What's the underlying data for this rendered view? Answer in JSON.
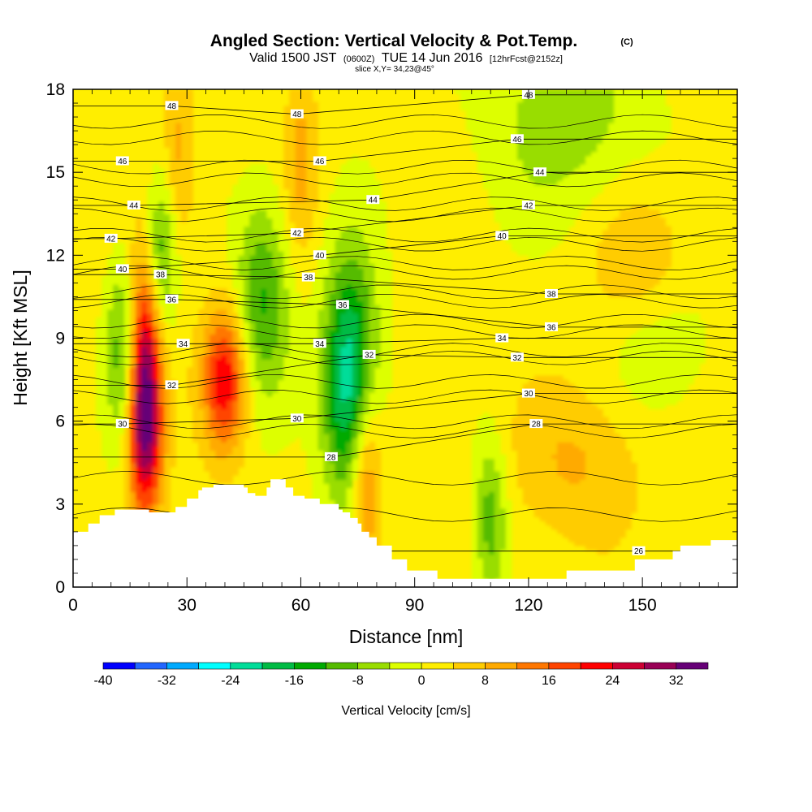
{
  "chart_data": {
    "type": "heatmap",
    "title": "Angled Section: Vertical Velocity & Pot.Temp.",
    "title_mark": "(C)",
    "subtitle": {
      "prefix": "Valid 1500 JST",
      "utc": "(0600Z)",
      "date": "TUE 14 Jun 2016",
      "forecast": "[12hrFcst@2152z]"
    },
    "slice_text": "slice X,Y= 34,23@45°",
    "xlabel": "Distance [nm]",
    "ylabel": "Height [Kft MSL]",
    "xlim": [
      0,
      175
    ],
    "ylim": [
      0,
      18
    ],
    "x_ticks": [
      "0",
      "30",
      "60",
      "90",
      "120",
      "150"
    ],
    "y_ticks": [
      "0",
      "3",
      "6",
      "9",
      "12",
      "15",
      "18"
    ],
    "colorbar": {
      "label": "Vertical Velocity [cm/s]",
      "tick_labels": [
        "-40",
        "-32",
        "-24",
        "-16",
        "-8",
        "0",
        "8",
        "16",
        "24",
        "32"
      ],
      "bins": [
        {
          "from": -40,
          "to": -36,
          "color": "#0000ff"
        },
        {
          "from": -36,
          "to": -32,
          "color": "#2266ff"
        },
        {
          "from": -32,
          "to": -28,
          "color": "#00aaff"
        },
        {
          "from": -28,
          "to": -24,
          "color": "#00ffff"
        },
        {
          "from": -24,
          "to": -20,
          "color": "#00dd99"
        },
        {
          "from": -20,
          "to": -16,
          "color": "#00bb44"
        },
        {
          "from": -16,
          "to": -12,
          "color": "#00aa00"
        },
        {
          "from": -12,
          "to": -8,
          "color": "#55bb00"
        },
        {
          "from": -8,
          "to": -4,
          "color": "#99dd00"
        },
        {
          "from": -4,
          "to": 0,
          "color": "#ddff00"
        },
        {
          "from": 0,
          "to": 4,
          "color": "#ffee00"
        },
        {
          "from": 4,
          "to": 8,
          "color": "#ffcc00"
        },
        {
          "from": 8,
          "to": 12,
          "color": "#ffaa00"
        },
        {
          "from": 12,
          "to": 16,
          "color": "#ff7700"
        },
        {
          "from": 16,
          "to": 20,
          "color": "#ff4400"
        },
        {
          "from": 20,
          "to": 24,
          "color": "#ff0000"
        },
        {
          "from": 24,
          "to": 28,
          "color": "#cc0033"
        },
        {
          "from": 28,
          "to": 32,
          "color": "#990055"
        },
        {
          "from": 32,
          "to": 36,
          "color": "#660077"
        }
      ]
    },
    "vertical_velocity_cells": [
      {
        "x": 19,
        "z": 7.8,
        "sx": 3,
        "sz": 3,
        "w": 28
      },
      {
        "x": 19,
        "z": 5.2,
        "sx": 3.5,
        "sz": 2.0,
        "w": 14
      },
      {
        "x": 40,
        "z": 7.5,
        "sx": 4,
        "sz": 1.8,
        "w": 22
      },
      {
        "x": 28,
        "z": 15.5,
        "sx": 3,
        "sz": 2.5,
        "w": 8
      },
      {
        "x": 60,
        "z": 15.5,
        "sx": 3,
        "sz": 2.5,
        "w": 8
      },
      {
        "x": 77,
        "z": 4,
        "sx": 3,
        "sz": 2.5,
        "w": 16
      },
      {
        "x": 73,
        "z": 7.5,
        "sx": 5,
        "sz": 3,
        "w": -26
      },
      {
        "x": 50,
        "z": 10.5,
        "sx": 5,
        "sz": 2.5,
        "w": -14
      },
      {
        "x": 23,
        "z": 12,
        "sx": 3,
        "sz": 2,
        "w": -14
      },
      {
        "x": 13,
        "z": 8.5,
        "sx": 3,
        "sz": 2.5,
        "w": -12
      },
      {
        "x": 110,
        "z": 2.5,
        "sx": 3,
        "sz": 2,
        "w": -12
      },
      {
        "x": 130,
        "z": 17,
        "sx": 15,
        "sz": 2.5,
        "w": -8
      },
      {
        "x": 155,
        "z": 9,
        "sx": 10,
        "sz": 2,
        "w": -6
      },
      {
        "x": 133,
        "z": 4.5,
        "sx": 12,
        "sz": 2,
        "w": 7
      },
      {
        "x": 150,
        "z": 11.5,
        "sx": 10,
        "sz": 2,
        "w": 7
      }
    ],
    "terrain": {
      "x": [
        0,
        4,
        7,
        11,
        13,
        20,
        27,
        30,
        33,
        34,
        36,
        37,
        45,
        46,
        48,
        51,
        52,
        55,
        56,
        58,
        60,
        61,
        65,
        66,
        70,
        71,
        73,
        75,
        76,
        78,
        80,
        84,
        88,
        96,
        112,
        128,
        130,
        140,
        148,
        150,
        158,
        160,
        168,
        175
      ],
      "z": [
        2.0,
        2.3,
        2.6,
        2.8,
        2.8,
        2.7,
        2.9,
        3.2,
        3.5,
        3.6,
        3.6,
        3.7,
        3.6,
        3.4,
        3.3,
        3.6,
        3.9,
        3.9,
        3.6,
        3.3,
        3.3,
        3.2,
        3.0,
        3.0,
        2.8,
        2.7,
        2.5,
        2.3,
        2.0,
        1.8,
        1.5,
        1.0,
        0.6,
        0.3,
        0.3,
        0.3,
        0.6,
        0.6,
        1.0,
        1.0,
        1.3,
        1.5,
        1.7,
        1.7
      ]
    },
    "theta_contour_labels": [
      {
        "text": "48",
        "x": 26,
        "z": 17.4
      },
      {
        "text": "48",
        "x": 59,
        "z": 17.1
      },
      {
        "text": "48",
        "x": 120,
        "z": 17.8
      },
      {
        "text": "46",
        "x": 13,
        "z": 15.4
      },
      {
        "text": "46",
        "x": 65,
        "z": 15.4
      },
      {
        "text": "46",
        "x": 117,
        "z": 16.2
      },
      {
        "text": "44",
        "x": 16,
        "z": 13.8
      },
      {
        "text": "44",
        "x": 79,
        "z": 14.0
      },
      {
        "text": "44",
        "x": 123,
        "z": 15.0
      },
      {
        "text": "42",
        "x": 10,
        "z": 12.6
      },
      {
        "text": "42",
        "x": 59,
        "z": 12.8
      },
      {
        "text": "42",
        "x": 120,
        "z": 13.8
      },
      {
        "text": "40",
        "x": 13,
        "z": 11.5
      },
      {
        "text": "40",
        "x": 65,
        "z": 12.0
      },
      {
        "text": "40",
        "x": 113,
        "z": 12.7
      },
      {
        "text": "38",
        "x": 23,
        "z": 11.3
      },
      {
        "text": "38",
        "x": 62,
        "z": 11.2
      },
      {
        "text": "38",
        "x": 126,
        "z": 10.6
      },
      {
        "text": "36",
        "x": 26,
        "z": 10.4
      },
      {
        "text": "36",
        "x": 71,
        "z": 10.2
      },
      {
        "text": "36",
        "x": 126,
        "z": 9.4
      },
      {
        "text": "34",
        "x": 29,
        "z": 8.8
      },
      {
        "text": "34",
        "x": 65,
        "z": 8.8
      },
      {
        "text": "34",
        "x": 113,
        "z": 9.0
      },
      {
        "text": "32",
        "x": 26,
        "z": 7.3
      },
      {
        "text": "32",
        "x": 78,
        "z": 8.4
      },
      {
        "text": "32",
        "x": 117,
        "z": 8.3
      },
      {
        "text": "30",
        "x": 13,
        "z": 5.9
      },
      {
        "text": "30",
        "x": 59,
        "z": 6.1
      },
      {
        "text": "30",
        "x": 120,
        "z": 7.0
      },
      {
        "text": "28",
        "x": 68,
        "z": 4.7
      },
      {
        "text": "28",
        "x": 122,
        "z": 5.9
      },
      {
        "text": "26",
        "x": 149,
        "z": 1.3
      }
    ]
  }
}
